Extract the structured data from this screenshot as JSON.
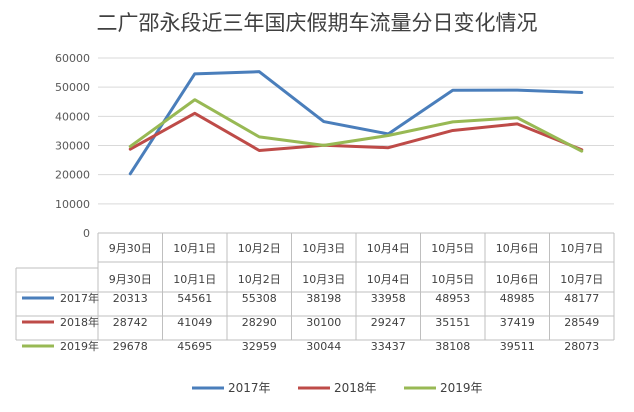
{
  "chart_data": {
    "type": "line",
    "title": "二广邵永段近三年国庆假期车流量分日变化情况",
    "categories": [
      "9月30日",
      "10月1日",
      "10月2日",
      "10月3日",
      "10月4日",
      "10月5日",
      "10月6日",
      "10月7日"
    ],
    "ylim": [
      0,
      60000
    ],
    "yticks": [
      0,
      10000,
      20000,
      30000,
      40000,
      50000,
      60000
    ],
    "grid": true,
    "legend_position": "bottom",
    "has_data_table": true,
    "series": [
      {
        "name": "2017年",
        "color": "#4a7ebb",
        "values": [
          20313,
          54561,
          55308,
          38198,
          33958,
          48953,
          48985,
          48177
        ]
      },
      {
        "name": "2018年",
        "color": "#be4b48",
        "values": [
          28742,
          41049,
          28290,
          30100,
          29247,
          35151,
          37419,
          28549
        ]
      },
      {
        "name": "2019年",
        "color": "#98b954",
        "values": [
          29678,
          45695,
          32959,
          30044,
          33437,
          38108,
          39511,
          28073
        ]
      }
    ]
  }
}
